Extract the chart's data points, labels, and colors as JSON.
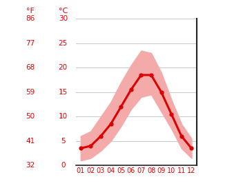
{
  "months": [
    1,
    2,
    3,
    4,
    5,
    6,
    7,
    8,
    9,
    10,
    11,
    12
  ],
  "month_labels": [
    "01",
    "02",
    "03",
    "04",
    "05",
    "06",
    "07",
    "08",
    "09",
    "10",
    "11",
    "12"
  ],
  "avg_temp_c": [
    3.5,
    4.0,
    6.0,
    8.5,
    12.0,
    15.5,
    18.5,
    18.5,
    15.0,
    10.5,
    6.0,
    3.5
  ],
  "max_avg_c": [
    6.0,
    7.0,
    10.0,
    13.0,
    17.0,
    20.5,
    23.5,
    23.0,
    19.0,
    13.5,
    8.5,
    5.5
  ],
  "min_avg_c": [
    1.0,
    1.5,
    3.0,
    5.0,
    8.0,
    11.5,
    14.0,
    14.5,
    11.0,
    7.5,
    3.5,
    1.5
  ],
  "ylim_c": [
    0,
    30
  ],
  "yticks_c": [
    0,
    5,
    10,
    15,
    20,
    25,
    30
  ],
  "yticks_f": [
    32,
    41,
    50,
    59,
    68,
    77,
    86
  ],
  "line_color": "#dd0000",
  "band_color": "#f5aaaa",
  "bg_color": "#ffffff",
  "grid_color": "#cccccc",
  "axis_color": "#222222",
  "label_color": "#dd0000",
  "label_f": "°F",
  "label_c": "°C",
  "figsize": [
    3.65,
    2.73
  ],
  "dpi": 100
}
